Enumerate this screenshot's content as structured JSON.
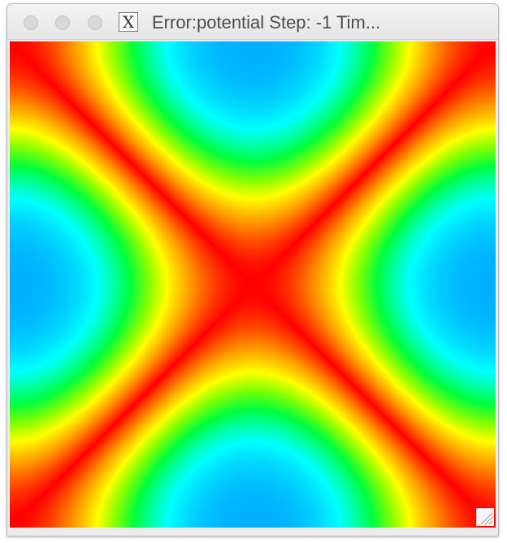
{
  "window": {
    "title": "Error:potential Step: -1 Tim...",
    "app_icon_glyph": "X",
    "controls": [
      "close",
      "minimize",
      "zoom"
    ]
  },
  "icons": {
    "app": "x11-icon",
    "grip": "resize-grip-icon"
  },
  "colors": {
    "titlebar": "#ececec",
    "title_text": "#4d4d4d",
    "traffic_inactive": "#d9d9d9",
    "map_high": "#ff0000",
    "map_mid": "#ffff00",
    "map_low_green": "#00ff00",
    "map_low_cyan": "#00ffff",
    "map_lowest": "#00b0ff"
  }
}
